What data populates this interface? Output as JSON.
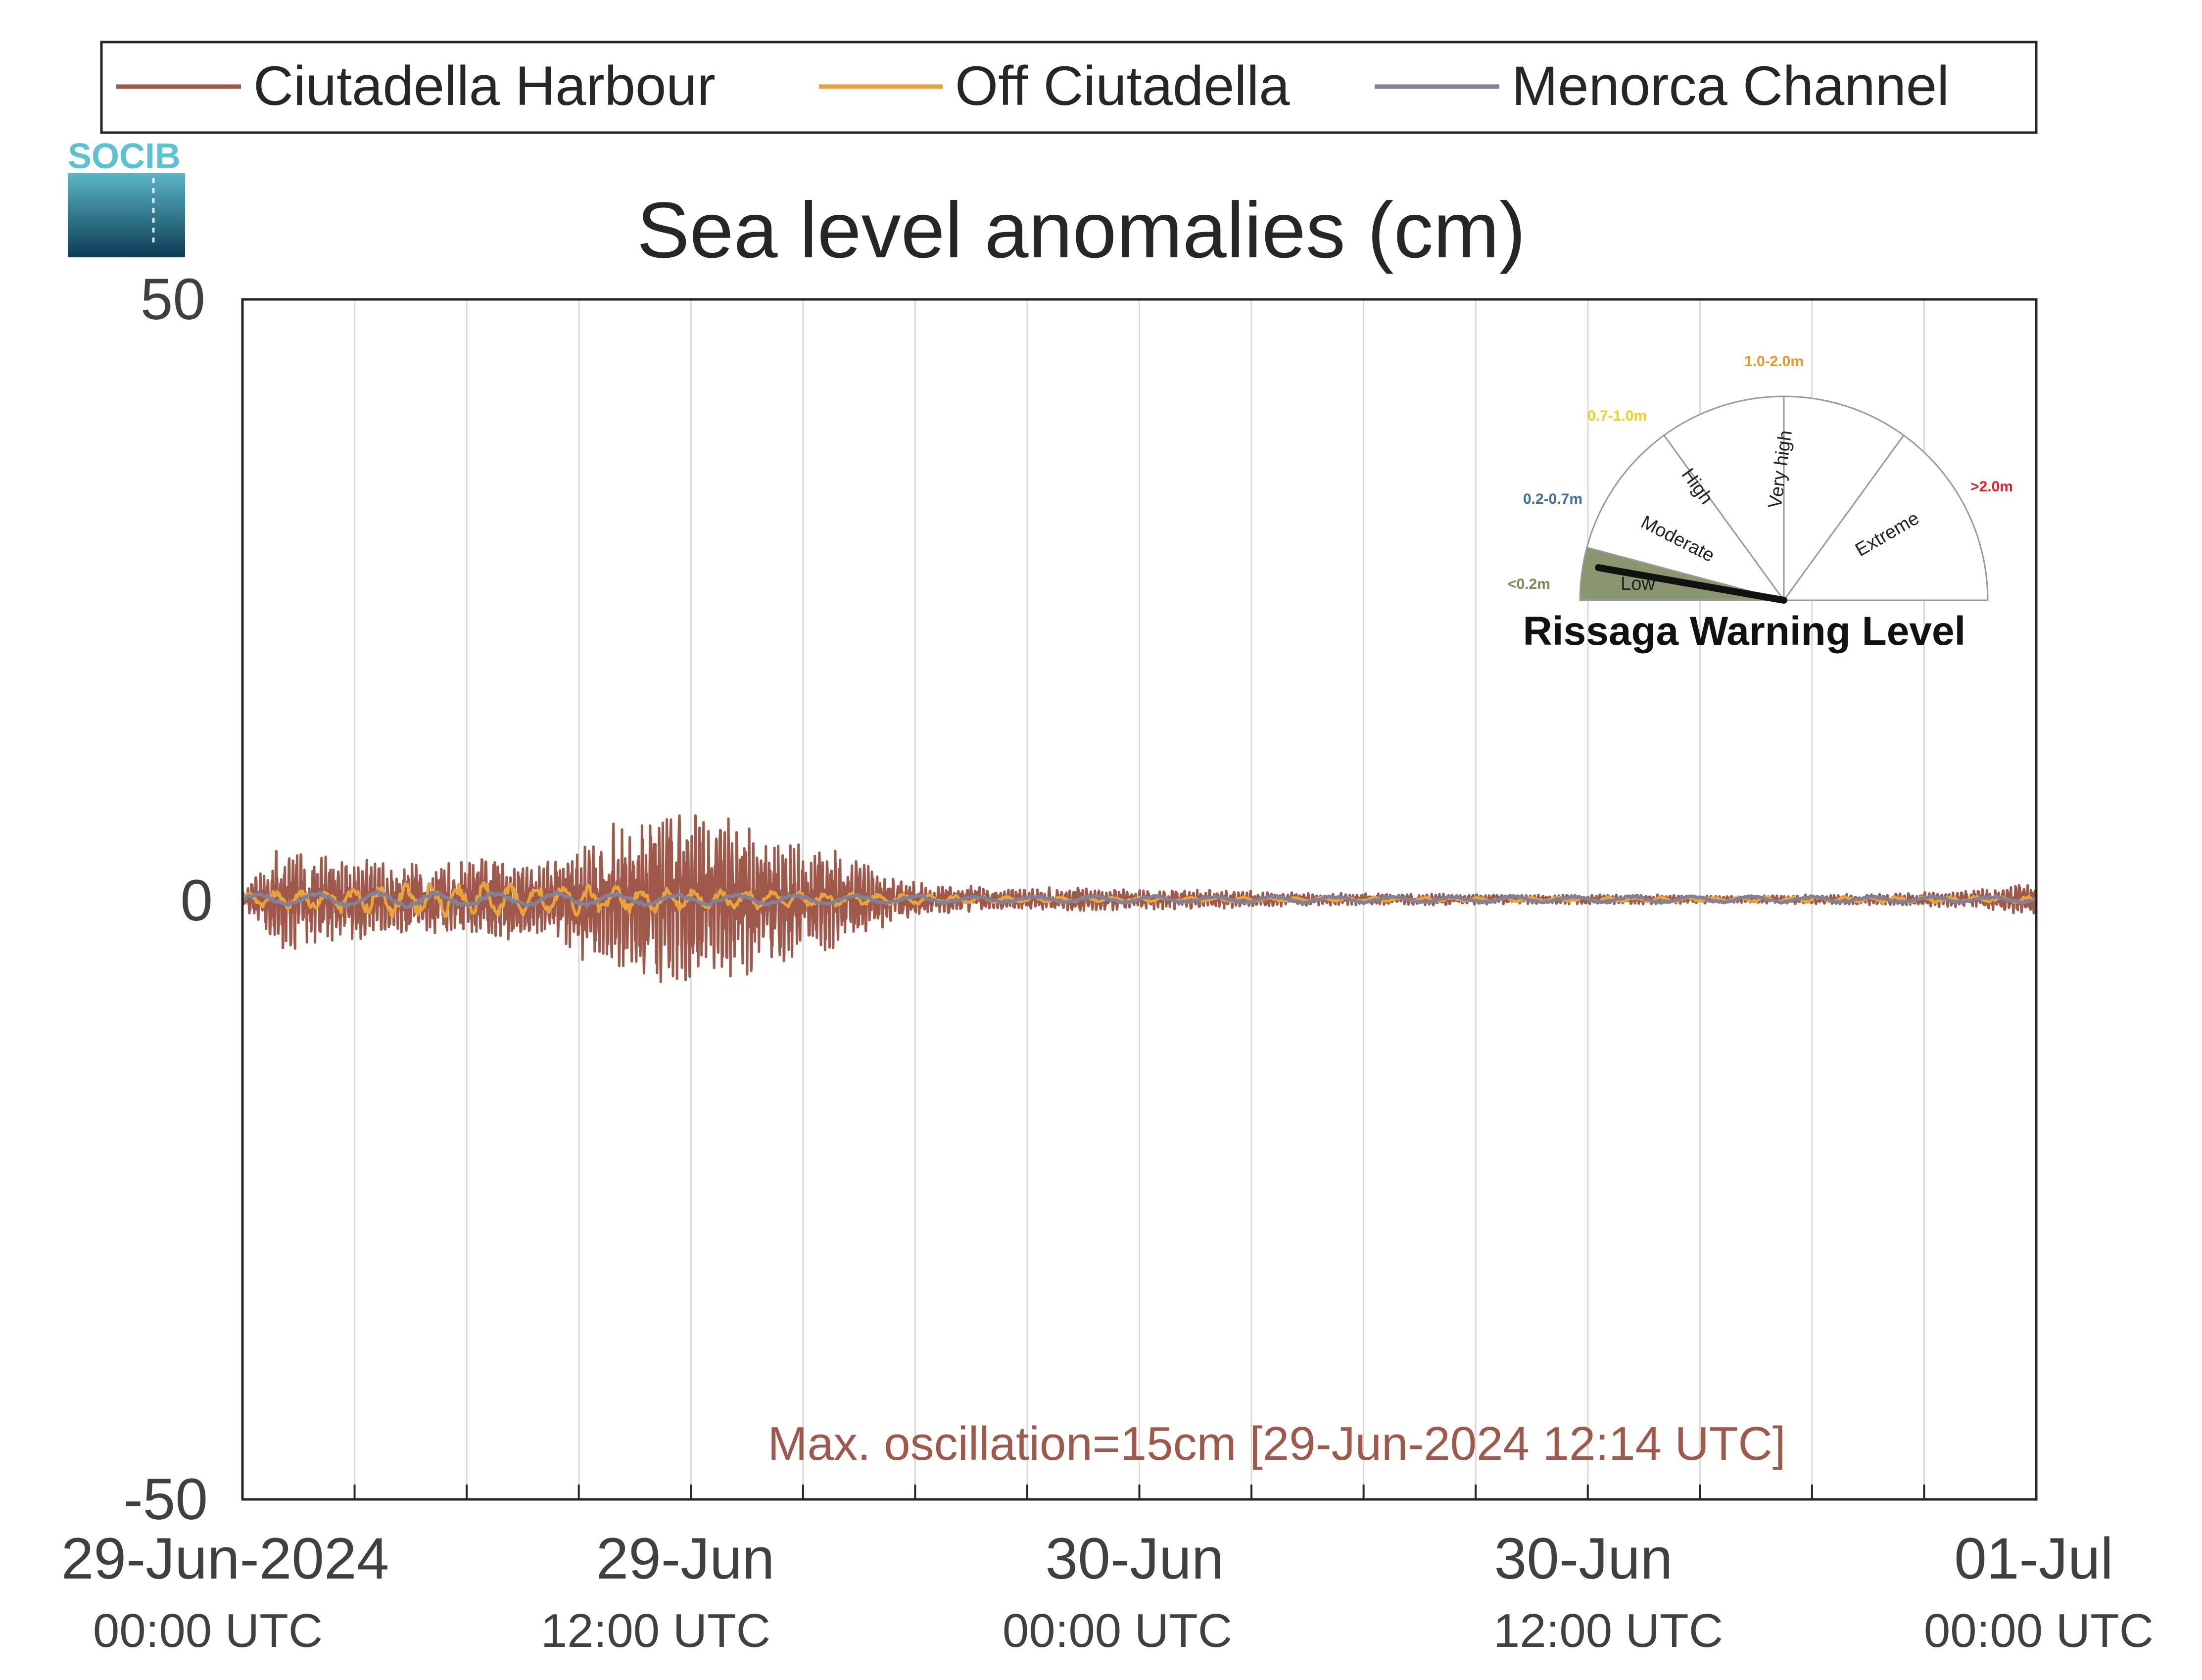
{
  "chart_data": {
    "type": "line",
    "title": "Sea level anomalies (cm)",
    "ylim": [
      -50,
      50
    ],
    "y_ticks": [
      "50",
      "0",
      "-50"
    ],
    "x_range_hours": [
      0,
      48
    ],
    "x_ticks": [
      {
        "date": "29-Jun-2024",
        "time": "00:00 UTC",
        "hour": 0
      },
      {
        "date": "29-Jun",
        "time": "12:00 UTC",
        "hour": 12
      },
      {
        "date": "30-Jun",
        "time": "00:00 UTC",
        "hour": 24
      },
      {
        "date": "30-Jun",
        "time": "12:00 UTC",
        "hour": 36
      },
      {
        "date": "01-Jul",
        "time": "00:00 UTC",
        "hour": 48
      }
    ],
    "grid": "vertical lines every 3 hours",
    "legend_position": "top",
    "series": [
      {
        "name": "Ciutadella Harbour",
        "color": "#a0584a",
        "envelope_x_hours": [
          0,
          1,
          2,
          3,
          4,
          5,
          6,
          7,
          8,
          9,
          10,
          11,
          12,
          13,
          14,
          15,
          16,
          17,
          18,
          20,
          22,
          24,
          26,
          28,
          30,
          32,
          34,
          36,
          38,
          40,
          42,
          44,
          46,
          47,
          48
        ],
        "envelope_amplitude_cm": [
          0.5,
          4.5,
          4,
          3.5,
          3,
          3,
          3.5,
          4,
          3,
          5,
          6.5,
          7,
          7.5,
          7,
          6,
          5,
          4,
          2.5,
          1.5,
          1,
          1,
          0.9,
          0.8,
          0.6,
          0.5,
          0.5,
          0.4,
          0.4,
          0.4,
          0.3,
          0.4,
          0.5,
          0.7,
          1,
          1.5
        ],
        "max_oscillation_cm": 15
      },
      {
        "name": "Off Ciutadella",
        "color": "#e8a33c",
        "envelope_x_hours": [
          0,
          4,
          8,
          12,
          16,
          20,
          24,
          36,
          48
        ],
        "envelope_amplitude_cm": [
          0.5,
          1.5,
          1.5,
          1,
          0.6,
          0.3,
          0.2,
          0.2,
          0.3
        ]
      },
      {
        "name": "Menorca Channel",
        "color": "#80829a",
        "envelope_x_hours": [
          0,
          4,
          8,
          12,
          16,
          20,
          24,
          36,
          48
        ],
        "envelope_amplitude_cm": [
          0.5,
          0.7,
          0.6,
          0.5,
          0.4,
          0.3,
          0.3,
          0.3,
          0.3
        ]
      }
    ],
    "annotation": "Max. oscillation=15cm [29-Jun-2024 12:14 UTC]",
    "annotation_color": "#a0584a"
  },
  "logo": {
    "text": "SOCIB",
    "color": "#5bc3d0"
  },
  "gauge": {
    "title": "Rissaga Warning Level",
    "current_level": "Low",
    "sectors": [
      {
        "label": "Low",
        "range": "<0.2m",
        "range_color": "#7a8a55",
        "fill": "#8a9670"
      },
      {
        "label": "Moderate",
        "range": "0.2-0.7m",
        "range_color": "#3f6fa0",
        "fill": "#ffffff"
      },
      {
        "label": "High",
        "range": "0.7-1.0m",
        "range_color": "#f0d21e",
        "fill": "#ffffff"
      },
      {
        "label": "Very high",
        "range": "1.0-2.0m",
        "range_color": "#e39a2c",
        "fill": "#ffffff"
      },
      {
        "label": "Extreme",
        "range": ">2.0m",
        "range_color": "#e0222e",
        "fill": "#ffffff"
      }
    ]
  }
}
